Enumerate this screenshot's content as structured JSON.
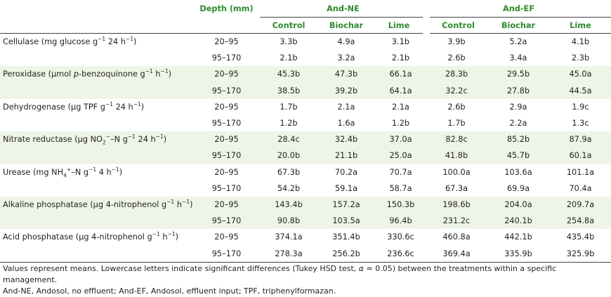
{
  "headers": {
    "depth": "Depth (mm)",
    "group1": "And-NE",
    "group2": "And-EF",
    "sub": [
      "Control",
      "Biochar",
      "Lime",
      "Control",
      "Biochar",
      "Lime"
    ]
  },
  "rows": [
    {
      "label_parts": [
        {
          "t": "Cellulase (mg glucose g"
        },
        {
          "t": "−1",
          "sup": true
        },
        {
          "t": " 24 h"
        },
        {
          "t": "−1",
          "sup": true
        },
        {
          "t": ")"
        }
      ],
      "depths": [
        "20–95",
        "95–170"
      ],
      "values": [
        [
          "3.3b",
          "4.9a",
          "3.1b",
          "3.9b",
          "5.2a",
          "4.1b"
        ],
        [
          "2.1b",
          "3.2a",
          "2.1b",
          "2.6b",
          "3.4a",
          "2.3b"
        ]
      ]
    },
    {
      "label_parts": [
        {
          "t": "Peroxidase (µmol "
        },
        {
          "t": "p",
          "it": true
        },
        {
          "t": "-benzoquinone g"
        },
        {
          "t": "−1",
          "sup": true
        },
        {
          "t": " h"
        },
        {
          "t": "−1",
          "sup": true
        },
        {
          "t": ")"
        }
      ],
      "depths": [
        "20–95",
        "95–170"
      ],
      "values": [
        [
          "45.3b",
          "47.3b",
          "66.1a",
          "28.3b",
          "29.5b",
          "45.0a"
        ],
        [
          "38.5b",
          "39.2b",
          "64.1a",
          "32.2c",
          "27.8b",
          "44.5a"
        ]
      ]
    },
    {
      "label_parts": [
        {
          "t": "Dehydrogenase (µg TPF g"
        },
        {
          "t": "−1",
          "sup": true
        },
        {
          "t": " 24 h"
        },
        {
          "t": "−1",
          "sup": true
        },
        {
          "t": ")"
        }
      ],
      "depths": [
        "20–95",
        "95–170"
      ],
      "values": [
        [
          "1.7b",
          "2.1a",
          "2.1a",
          "2.6b",
          "2.9a",
          "1.9c"
        ],
        [
          "1.2b",
          "1.6a",
          "1.2b",
          "1.7b",
          "2.2a",
          "1.3c"
        ]
      ]
    },
    {
      "label_parts": [
        {
          "t": "Nitrate reductase (µg NO"
        },
        {
          "t": "2",
          "sub": true
        },
        {
          "t": "−",
          "sup": true
        },
        {
          "t": "–N g"
        },
        {
          "t": "−1",
          "sup": true
        },
        {
          "t": " 24 h"
        },
        {
          "t": "−1",
          "sup": true
        },
        {
          "t": ")"
        }
      ],
      "depths": [
        "20–95",
        "95–170"
      ],
      "values": [
        [
          "28.4c",
          "32.4b",
          "37.0a",
          "82.8c",
          "85.2b",
          "87.9a"
        ],
        [
          "20.0b",
          "21.1b",
          "25.0a",
          "41.8b",
          "45.7b",
          "60.1a"
        ]
      ]
    },
    {
      "label_parts": [
        {
          "t": "Urease (mg NH"
        },
        {
          "t": "4",
          "sub": true
        },
        {
          "t": "+",
          "sup": true
        },
        {
          "t": "–N g"
        },
        {
          "t": "−1",
          "sup": true
        },
        {
          "t": " 4 h"
        },
        {
          "t": "−1",
          "sup": true
        },
        {
          "t": ")"
        }
      ],
      "depths": [
        "20–95",
        "95–170"
      ],
      "values": [
        [
          "67.3b",
          "70.2a",
          "70.7a",
          "100.0a",
          "103.6a",
          "101.1a"
        ],
        [
          "54.2b",
          "59.1a",
          "58.7a",
          "67.3a",
          "69.9a",
          "70.4a"
        ]
      ]
    },
    {
      "label_parts": [
        {
          "t": "Alkaline phosphatase (µg 4-nitrophenol g"
        },
        {
          "t": "−1",
          "sup": true
        },
        {
          "t": " h"
        },
        {
          "t": "−1",
          "sup": true
        },
        {
          "t": ")"
        }
      ],
      "depths": [
        "20–95",
        "95–170"
      ],
      "values": [
        [
          "143.4b",
          "157.2a",
          "150.3b",
          "198.6b",
          "204.0a",
          "209.7a"
        ],
        [
          "90.8b",
          "103.5a",
          "96.4b",
          "231.2c",
          "240.1b",
          "254.8a"
        ]
      ]
    },
    {
      "label_parts": [
        {
          "t": "Acid phosphatase (µg 4-nitrophenol g"
        },
        {
          "t": "−1",
          "sup": true
        },
        {
          "t": " h"
        },
        {
          "t": "−1",
          "sup": true
        },
        {
          "t": ")"
        }
      ],
      "depths": [
        "20–95",
        "95–170"
      ],
      "values": [
        [
          "374.1a",
          "351.4b",
          "330.6c",
          "460.8a",
          "442.1b",
          "435.4b"
        ],
        [
          "278.3a",
          "256.2b",
          "236.6c",
          "369.4a",
          "335.9b",
          "325.9b"
        ]
      ]
    }
  ],
  "footnote": {
    "parts": [
      {
        "t": "Values represent means. Lowercase letters indicate significant differences (Tukey HSD test, "
      },
      {
        "t": "α",
        "it": true
      },
      {
        "t": " = 0.05) between the treatments within a specific management."
      },
      {
        "t": "And-NE, Andosol, no effluent; And-EF, Andosol, effluent input; TPF, triphenylformazan.",
        "br": true
      }
    ]
  },
  "colors": {
    "header_green": "#2e8b2e",
    "shade": "#eef5e6",
    "rule": "#444444"
  }
}
